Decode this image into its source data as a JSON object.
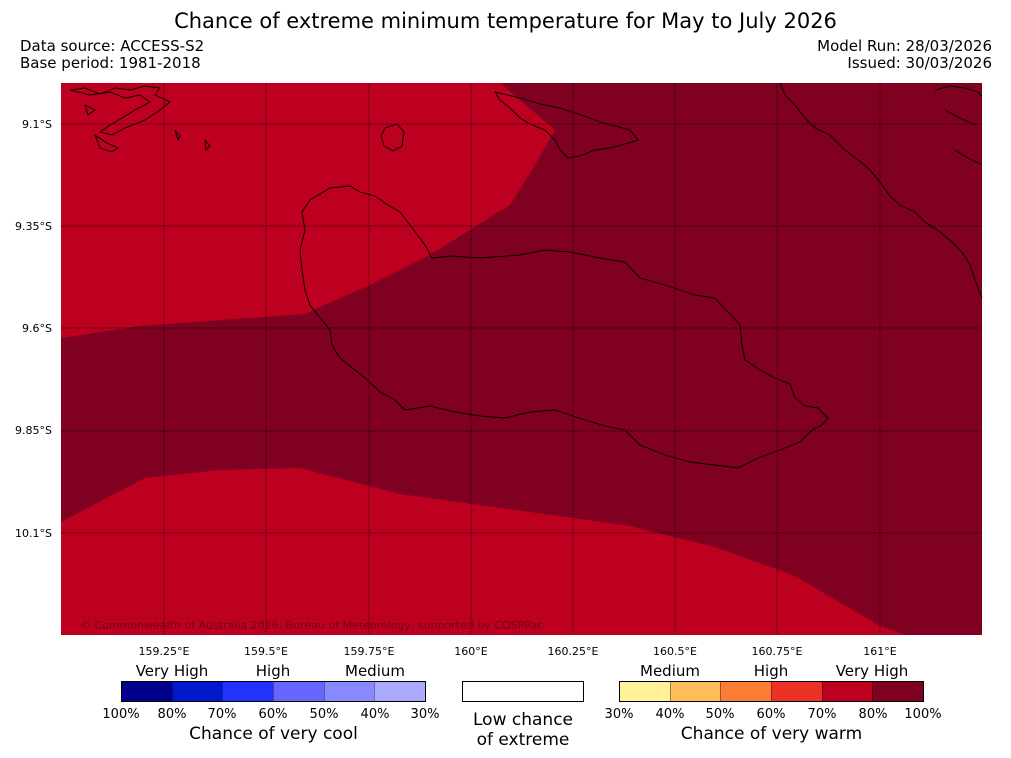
{
  "header": {
    "title": "Chance of extreme minimum temperature for May to July 2026",
    "data_source": "Data source: ACCESS-S2",
    "base_period": "Base period: 1981-2018",
    "model_run": "Model Run: 28/03/2026",
    "issued": "Issued: 30/03/2026"
  },
  "map": {
    "lat_labels": [
      "9.1°S",
      "9.35°S",
      "9.6°S",
      "9.85°S",
      "10.1°S"
    ],
    "lon_labels": [
      "159.25°E",
      "159.5°E",
      "159.75°E",
      "160°E",
      "160.25°E",
      "160.5°E",
      "160.75°E",
      "161°E"
    ],
    "colors": {
      "category_70_80": "#bd0020",
      "category_80_100": "#7f0020",
      "ocean_outline": "#000000"
    },
    "regions": [
      {
        "name": "70-80% chance of very warm",
        "color_key": "category_70_80"
      },
      {
        "name": "80-100% chance of very warm",
        "color_key": "category_80_100"
      }
    ],
    "copyright": "© Commonwealth of Australia 2026, Bureau of Meteorology, supported by COSPPac"
  },
  "legend": {
    "cool": {
      "headers": [
        "Very High",
        "High",
        "Medium"
      ],
      "colors": [
        "#00008c",
        "#0019cc",
        "#2233ff",
        "#6666ff",
        "#8888ff",
        "#aaaaff"
      ],
      "ticks": [
        "100%",
        "80%",
        "70%",
        "60%",
        "50%",
        "40%",
        "30%"
      ],
      "caption": "Chance of very cool"
    },
    "neutral": {
      "color": "#ffffff",
      "caption_line1": "Low chance",
      "caption_line2": "of extreme"
    },
    "warm": {
      "headers": [
        "Medium",
        "High",
        "Very High"
      ],
      "colors": [
        "#fff09a",
        "#fcbd5a",
        "#fc7b35",
        "#ec3226",
        "#bd0020",
        "#7f0020"
      ],
      "ticks": [
        "30%",
        "40%",
        "50%",
        "60%",
        "70%",
        "80%",
        "100%"
      ],
      "caption": "Chance of very warm"
    }
  }
}
